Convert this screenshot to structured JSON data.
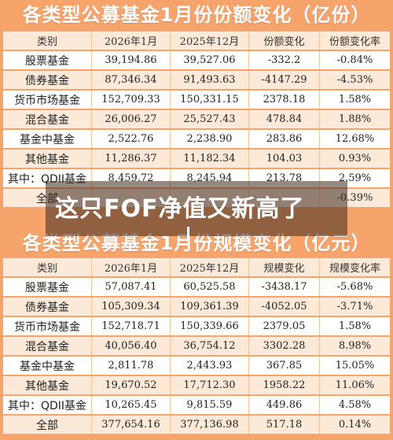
{
  "top_table": {
    "title": "各类型公募基金1月份份额变化（亿份）",
    "headers": [
      "类别",
      "2026年1月",
      "2025年12月",
      "份额变化",
      "份额变化率"
    ],
    "rows": [
      [
        "股票基金",
        "39,194.86",
        "39,527.06",
        "-332.2",
        "-0.84%"
      ],
      [
        "债券基金",
        "87,346.34",
        "91,493.63",
        "-4147.29",
        "-4.53%"
      ],
      [
        "货币市场基金",
        "152,709.33",
        "150,331.15",
        "2378.18",
        "1.58%"
      ],
      [
        "混合基金",
        "26,006.27",
        "25,527.43",
        "478.84",
        "1.88%"
      ],
      [
        "基金中基金",
        "2,522.76",
        "2,238.90",
        "283.86",
        "12.68%"
      ],
      [
        "其他基金",
        "11,286.37",
        "11,182.34",
        "104.03",
        "0.93%"
      ],
      [
        "其中：QDII基金",
        "8,459.72",
        "8,245.94",
        "213.78",
        "2.59%"
      ],
      [
        "全部",
        "",
        "",
        "",
        "-0.39%"
      ]
    ]
  },
  "bottom_table": {
    "title": "各类型公募基金1月份规模变化（亿元）",
    "headers": [
      "类别",
      "2026年1月",
      "2025年12月",
      "规模变化",
      "规模变化率"
    ],
    "rows": [
      [
        "股票基金",
        "57,087.41",
        "60,525.58",
        "-3438.17",
        "-5.68%"
      ],
      [
        "债券基金",
        "105,309.34",
        "109,361.39",
        "-4052.05",
        "-3.71%"
      ],
      [
        "货币市场基金",
        "152,718.71",
        "150,339.66",
        "2379.05",
        "1.58%"
      ],
      [
        "混合基金",
        "40,056.40",
        "36,754.12",
        "3302.28",
        "8.98%"
      ],
      [
        "基金中基金",
        "2,811.78",
        "2,443.93",
        "367.85",
        "15.05%"
      ],
      [
        "其他基金",
        "19,670.52",
        "17,712.30",
        "1958.22",
        "11.06%"
      ],
      [
        "其中：QDII基金",
        "10,265.45",
        "9,815.59",
        "449.86",
        "4.58%"
      ],
      [
        "全部",
        "377,654.16",
        "377,136.98",
        "517.18",
        "0.14%"
      ]
    ]
  },
  "overlay": {
    "headline": "这只FOF净值又新高了"
  }
}
